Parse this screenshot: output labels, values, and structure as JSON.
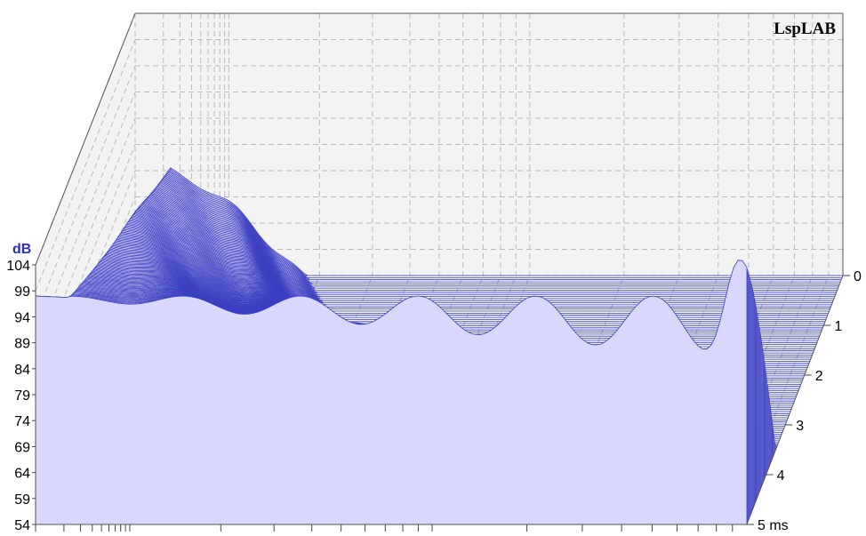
{
  "brand": "LspLAB",
  "colors": {
    "curve": "#3b3fc0",
    "fill": "#d9d7fb",
    "panel": "#f2f3f2",
    "grid": "#b9b9b9",
    "unit": "#2c2fb5"
  },
  "chart_data": {
    "type": "waterfall",
    "title": "",
    "z_unit": "dB",
    "z_ticks": [
      "104",
      "99",
      "94",
      "89",
      "84",
      "79",
      "74",
      "69",
      "64",
      "59",
      "54"
    ],
    "zlim": [
      54,
      104
    ],
    "time_unit": "ms",
    "time_ticks": [
      "0",
      "1",
      "2",
      "3",
      "4",
      "5 ms"
    ],
    "tlim": [
      0,
      5
    ],
    "frequency_axis": "log, unlabeled",
    "grid": true,
    "series_count": 120
  }
}
